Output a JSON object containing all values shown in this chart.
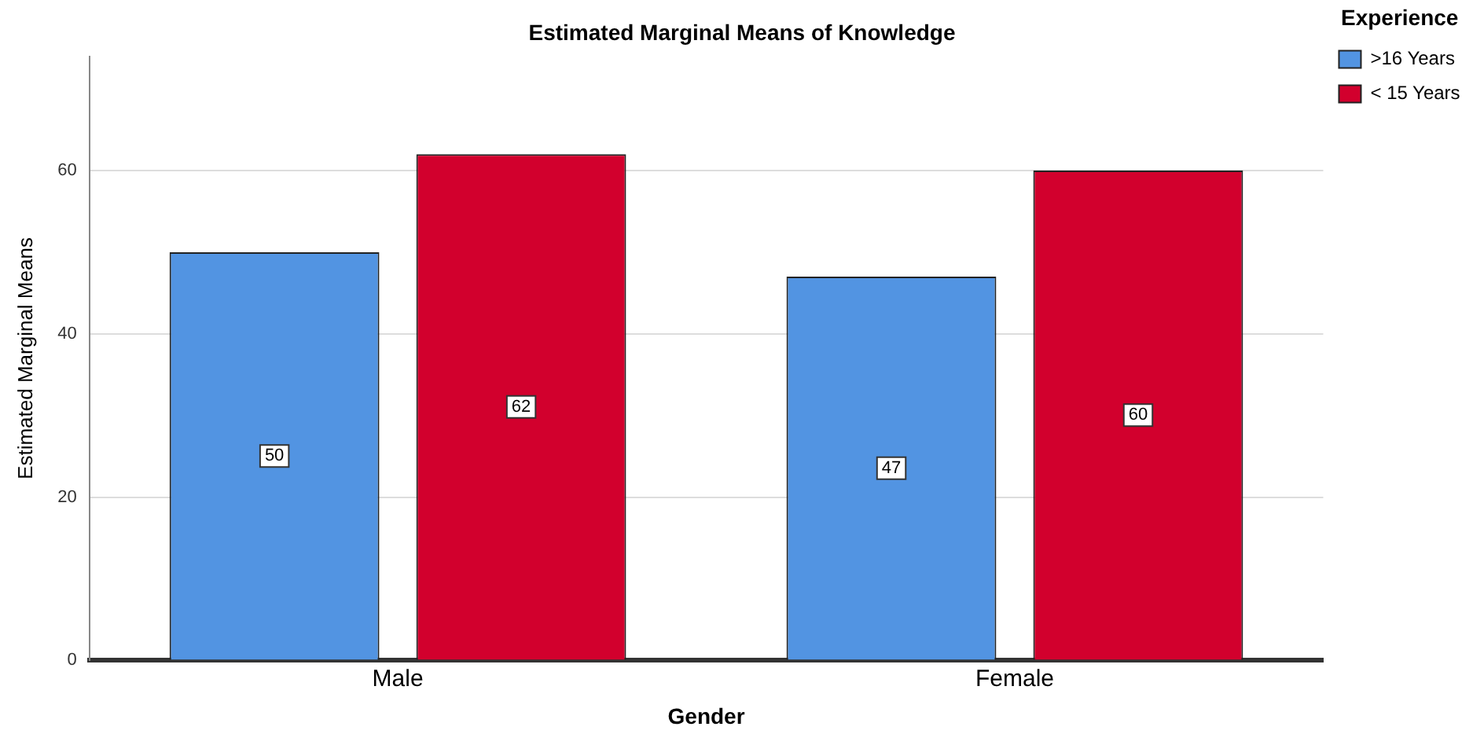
{
  "chart_data": {
    "type": "bar",
    "title": "Estimated Marginal Means of Knowledge",
    "xlabel": "Gender",
    "ylabel": "Estimated Marginal Means",
    "legend_title": "Experience",
    "categories": [
      "Male",
      "Female"
    ],
    "series": [
      {
        "name": ">16 Years",
        "color": "#5294e2",
        "values": [
          50,
          47
        ]
      },
      {
        "name": "< 15 Years",
        "color": "#d2002d",
        "values": [
          62,
          60
        ]
      }
    ],
    "ylim": [
      0,
      74
    ],
    "yticks": [
      0,
      20,
      40,
      60
    ],
    "grid": "y",
    "legend": "top right",
    "data_labels": true
  }
}
